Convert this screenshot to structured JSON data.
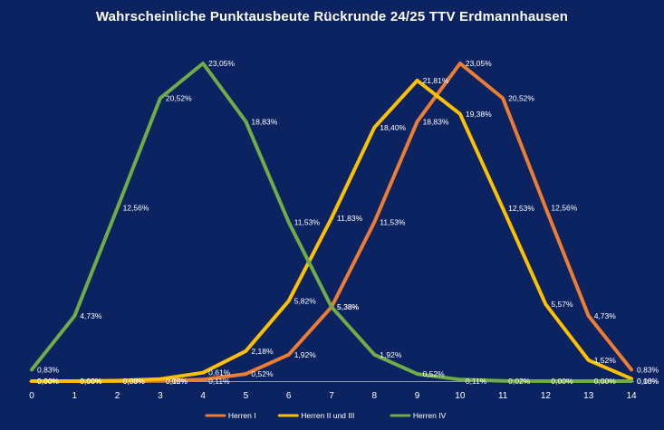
{
  "chart_data": {
    "type": "line",
    "title": "Wahrscheinliche Punktausbeute Rückrunde 24/25 TTV Erdmannhausen",
    "xlabel": "",
    "ylabel": "",
    "x": [
      0,
      1,
      2,
      3,
      4,
      5,
      6,
      7,
      8,
      9,
      10,
      11,
      12,
      13,
      14
    ],
    "ylim": [
      0,
      24
    ],
    "grid": false,
    "legend_position": "bottom",
    "series": [
      {
        "name": "Herren I",
        "color": "#ed7d31",
        "values": [
          0.0,
          0.0,
          0.0,
          0.02,
          0.11,
          0.52,
          1.92,
          5.38,
          11.53,
          18.83,
          23.05,
          20.52,
          12.56,
          4.73,
          0.83
        ],
        "labels": [
          "0,00%",
          "0,00%",
          "0,00%",
          "0,02%",
          "0,11%",
          "0,52%",
          "1,92%",
          "5,38%",
          "11,53%",
          "18,83%",
          "23,05%",
          "20,52%",
          "12,56%",
          "4,73%",
          "0,83%"
        ]
      },
      {
        "name": "Herren II und III",
        "color": "#ffc000",
        "values": [
          0.0,
          0.0,
          0.03,
          0.15,
          0.61,
          2.18,
          5.82,
          11.83,
          18.4,
          21.81,
          19.38,
          12.53,
          5.57,
          1.52,
          0.18
        ],
        "labels": [
          "0,00%",
          "0,00%",
          "0,03%",
          "0,15%",
          "0,61%",
          "2,18%",
          "5,82%",
          "11,83%",
          "18,40%",
          "21,81%",
          "19,38%",
          "12,53%",
          "5,57%",
          "1,52%",
          "0,18%"
        ]
      },
      {
        "name": "Herren IV",
        "color": "#70ad47",
        "values": [
          0.83,
          4.73,
          12.56,
          20.52,
          23.05,
          18.83,
          11.53,
          5.38,
          1.92,
          0.52,
          0.11,
          0.02,
          0.0,
          0.0,
          0.0
        ],
        "labels": [
          "0,83%",
          "4,73%",
          "12,56%",
          "20,52%",
          "23,05%",
          "18,83%",
          "11,53%",
          "5,38%",
          "1,92%",
          "0,52%",
          "0,11%",
          "0,02%",
          "0,00%",
          "0,00%",
          "0,00%"
        ]
      }
    ]
  }
}
